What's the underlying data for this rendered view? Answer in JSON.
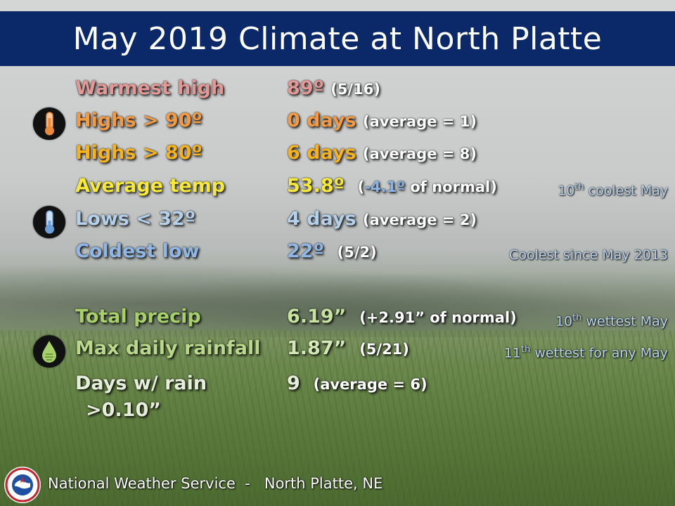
{
  "title": "May 2019 Climate at North Platte",
  "stats": [
    {
      "label": "Warmest high",
      "label_color": "#e39896",
      "value": "89º",
      "note": "(5/16)",
      "value_color": "#e39896",
      "rank": ""
    },
    {
      "label": "Highs > 90º",
      "label_color": "#f39a45",
      "value": "0 days",
      "note": "(average = 1)",
      "value_color": "#f39a45",
      "rank": ""
    },
    {
      "label": "Highs > 80º",
      "label_color": "#f6b21f",
      "value": "6 days",
      "note": "(average = 8)",
      "value_color": "#f6b21f",
      "rank": ""
    },
    {
      "label": "Average temp",
      "label_color": "#f6e93b",
      "value": "53.8º",
      "note_pre": "(",
      "note_colored": "-4.1º",
      "note_colored_color": "#8ab4e6",
      "note_post": " of normal)",
      "value_color": "#f6e93b",
      "rank": "10th coolest May"
    },
    {
      "label": "Lows < 32º",
      "label_color": "#b5d0ea",
      "value": "4 days",
      "note": "(average = 2)",
      "value_color": "#b5d0ea",
      "rank": ""
    },
    {
      "label": "Coldest low",
      "label_color": "#8fb6e4",
      "value": "22º",
      "note": "(5/2)",
      "value_color": "#8fb6e4",
      "rank": "Coolest since May 2013"
    },
    {
      "label": "Total precip",
      "label_color": "#a7cf6a",
      "value": "6.19”",
      "note": "(+2.91” of normal)",
      "value_color": "#c7e3a0",
      "rank": "10th wettest May"
    },
    {
      "label": "Max daily rainfall",
      "label_color": "#b9d88c",
      "value": "1.87”",
      "note": "(5/21)",
      "value_color": "#d4e8b6",
      "rank": "11th wettest for any May"
    },
    {
      "label": "Days w/ rain",
      "label_line2": ">0.10”",
      "label_color": "#e6eedb",
      "value": "9",
      "note": "(average = 6)",
      "value_color": "#e6eedb",
      "rank": ""
    }
  ],
  "icons": {
    "warm_thermometer": {
      "name": "thermometer-warm-icon",
      "fill": "#e98a3b"
    },
    "cold_thermometer": {
      "name": "thermometer-cold-icon",
      "fill": "#6d9fd8"
    },
    "raindrop": {
      "name": "raindrop-icon",
      "fill": "#a7cf6a"
    }
  },
  "footer": {
    "org": "National Weather Service",
    "separator": "-",
    "office": "North Platte, NE"
  }
}
